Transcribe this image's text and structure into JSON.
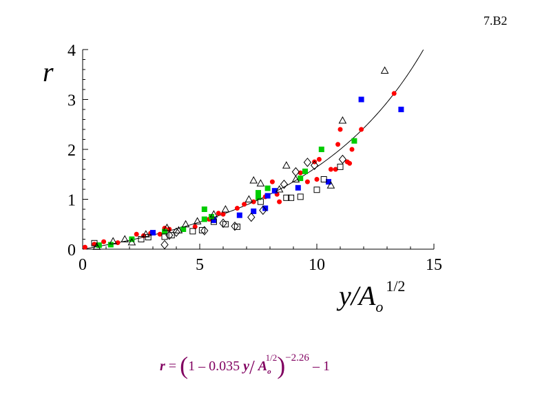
{
  "figure_label": "7.B2",
  "formula": {
    "lhs": "r",
    "eq": "=",
    "one": "1",
    "minus": "–",
    "coef": "0.035",
    "var_y": "y",
    "slash": "/",
    "var_A": "A",
    "sub_o": "o",
    "half": "1/2",
    "exponent": "−2.26",
    "tail": "– 1"
  },
  "chart_data": {
    "type": "scatter",
    "xlabel": "y/A",
    "xlabel_sub": "o",
    "xlabel_sup": "1/2",
    "ylabel": "r",
    "xlim": [
      0,
      15
    ],
    "ylim": [
      0,
      4
    ],
    "xticks": [
      "0",
      "5",
      "10",
      "15"
    ],
    "yticks": [
      "0",
      "1",
      "2",
      "3",
      "4"
    ],
    "xtick_values": [
      0,
      5,
      10,
      15
    ],
    "ytick_values": [
      0,
      1,
      2,
      3,
      4
    ],
    "grid": false,
    "curve": {
      "a": 0.035,
      "b": -2.26
    },
    "series": [
      {
        "marker": "circle-filled",
        "color": "#ff0000",
        "points": [
          [
            0.1,
            0.04
          ],
          [
            0.5,
            0.1
          ],
          [
            0.9,
            0.15
          ],
          [
            1.5,
            0.13
          ],
          [
            2.3,
            0.3
          ],
          [
            2.6,
            0.27
          ],
          [
            2.9,
            0.32
          ],
          [
            3.3,
            0.3
          ],
          [
            3.5,
            0.42
          ],
          [
            3.7,
            0.4
          ],
          [
            4.8,
            0.45
          ],
          [
            5.4,
            0.6
          ],
          [
            5.8,
            0.72
          ],
          [
            6.0,
            0.7
          ],
          [
            6.6,
            0.82
          ],
          [
            6.9,
            0.9
          ],
          [
            7.3,
            0.95
          ],
          [
            7.8,
            1.05
          ],
          [
            8.1,
            1.35
          ],
          [
            8.3,
            1.1
          ],
          [
            8.4,
            0.95
          ],
          [
            9.3,
            1.53
          ],
          [
            9.6,
            1.35
          ],
          [
            9.9,
            1.75
          ],
          [
            10.0,
            1.4
          ],
          [
            10.1,
            1.8
          ],
          [
            10.6,
            1.6
          ],
          [
            10.8,
            1.6
          ],
          [
            10.9,
            2.1
          ],
          [
            11.0,
            2.4
          ],
          [
            11.3,
            1.75
          ],
          [
            11.4,
            1.72
          ],
          [
            11.5,
            2.0
          ],
          [
            11.9,
            2.4
          ],
          [
            13.3,
            3.12
          ]
        ]
      },
      {
        "marker": "square-filled",
        "color": "#0000ff",
        "points": [
          [
            3.0,
            0.33
          ],
          [
            5.6,
            0.58
          ],
          [
            6.7,
            0.68
          ],
          [
            7.3,
            0.76
          ],
          [
            7.8,
            0.82
          ],
          [
            7.9,
            1.07
          ],
          [
            8.2,
            1.17
          ],
          [
            9.2,
            1.23
          ],
          [
            10.5,
            1.35
          ],
          [
            11.9,
            3.0
          ],
          [
            13.6,
            2.8
          ]
        ]
      },
      {
        "marker": "square-filled",
        "color": "#00cc00",
        "points": [
          [
            0.7,
            0.08
          ],
          [
            1.2,
            0.09
          ],
          [
            2.1,
            0.2
          ],
          [
            3.5,
            0.35
          ],
          [
            4.3,
            0.4
          ],
          [
            5.2,
            0.6
          ],
          [
            5.2,
            0.8
          ],
          [
            5.5,
            0.65
          ],
          [
            7.5,
            1.13
          ],
          [
            7.5,
            1.04
          ],
          [
            7.9,
            1.22
          ],
          [
            9.3,
            1.42
          ],
          [
            9.5,
            1.56
          ],
          [
            10.2,
            2.0
          ],
          [
            11.6,
            2.17
          ]
        ]
      },
      {
        "marker": "triangle-open",
        "color": "#000000",
        "points": [
          [
            0.6,
            0.05
          ],
          [
            1.3,
            0.16
          ],
          [
            1.8,
            0.2
          ],
          [
            2.1,
            0.14
          ],
          [
            2.7,
            0.3
          ],
          [
            3.6,
            0.43
          ],
          [
            4.1,
            0.38
          ],
          [
            4.4,
            0.5
          ],
          [
            4.9,
            0.56
          ],
          [
            5.6,
            0.7
          ],
          [
            6.1,
            0.8
          ],
          [
            7.1,
            1.0
          ],
          [
            7.3,
            1.38
          ],
          [
            7.6,
            1.32
          ],
          [
            8.4,
            1.2
          ],
          [
            8.7,
            1.68
          ],
          [
            9.1,
            1.4
          ],
          [
            10.6,
            1.28
          ],
          [
            11.1,
            2.58
          ],
          [
            12.9,
            3.58
          ]
        ]
      },
      {
        "marker": "square-open",
        "color": "#000000",
        "points": [
          [
            0.5,
            0.12
          ],
          [
            2.5,
            0.2
          ],
          [
            2.8,
            0.24
          ],
          [
            3.5,
            0.25
          ],
          [
            3.8,
            0.28
          ],
          [
            4.7,
            0.36
          ],
          [
            5.1,
            0.38
          ],
          [
            5.6,
            0.55
          ],
          [
            6.1,
            0.5
          ],
          [
            6.6,
            0.45
          ],
          [
            7.6,
            0.95
          ],
          [
            8.7,
            1.03
          ],
          [
            8.9,
            1.03
          ],
          [
            9.3,
            1.05
          ],
          [
            10.0,
            1.19
          ],
          [
            10.3,
            1.4
          ],
          [
            11.0,
            1.65
          ]
        ]
      },
      {
        "marker": "diamond-open",
        "color": "#000000",
        "points": [
          [
            3.5,
            0.09
          ],
          [
            3.7,
            0.28
          ],
          [
            4.0,
            0.34
          ],
          [
            5.2,
            0.37
          ],
          [
            6.0,
            0.52
          ],
          [
            6.5,
            0.46
          ],
          [
            7.2,
            0.64
          ],
          [
            7.7,
            0.78
          ],
          [
            8.6,
            1.3
          ],
          [
            9.1,
            1.55
          ],
          [
            9.6,
            1.74
          ],
          [
            9.9,
            1.68
          ],
          [
            11.1,
            1.8
          ]
        ]
      }
    ]
  }
}
